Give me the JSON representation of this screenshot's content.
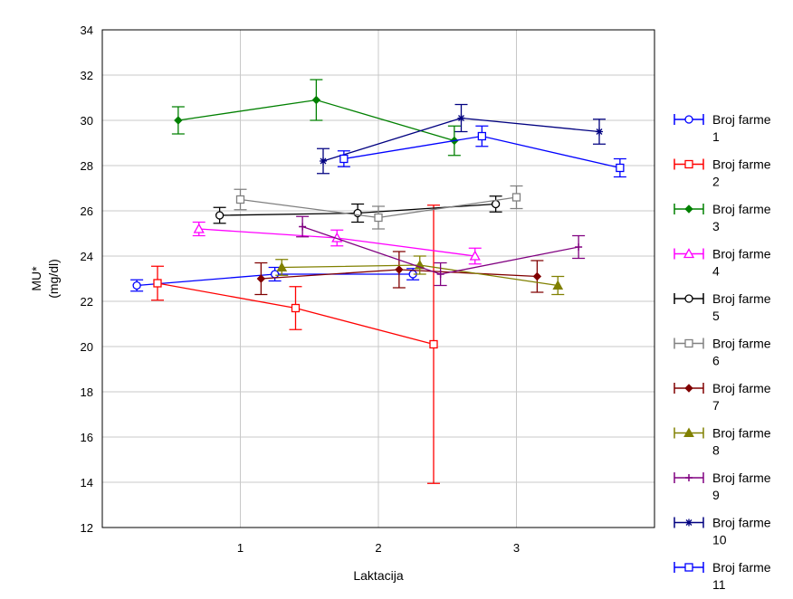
{
  "chart_data": {
    "type": "line",
    "xlabel": "Laktacija",
    "ylabel": [
      "MU*",
      "(mg/dl)"
    ],
    "xlim": [
      0,
      4
    ],
    "ylim": [
      12,
      34
    ],
    "x_ticks": [
      1,
      2,
      3
    ],
    "y_ticks": [
      12,
      14,
      16,
      18,
      20,
      22,
      24,
      26,
      28,
      30,
      32,
      34
    ],
    "grid": true,
    "legend_position": "right",
    "series": [
      {
        "name": [
          "Broj farme",
          "1"
        ],
        "color": "#0000ff",
        "marker": "circle",
        "x": [
          0.25,
          1.25,
          2.25
        ],
        "y": [
          22.7,
          23.2,
          23.2
        ],
        "err": [
          0.25,
          0.3,
          0.25
        ]
      },
      {
        "name": [
          "Broj farme",
          "2"
        ],
        "color": "#ff0000",
        "marker": "square",
        "x": [
          0.4,
          1.4,
          2.4
        ],
        "y": [
          22.8,
          21.7,
          20.1
        ],
        "err": [
          0.75,
          0.95,
          6.15
        ]
      },
      {
        "name": [
          "Broj farme",
          "3"
        ],
        "color": "#008000",
        "marker": "diamond",
        "x": [
          0.55,
          1.55,
          2.55
        ],
        "y": [
          30.0,
          30.9,
          29.1
        ],
        "err": [
          0.6,
          0.9,
          0.65
        ]
      },
      {
        "name": [
          "Broj farme",
          "4"
        ],
        "color": "#ff00ff",
        "marker": "triangle-open",
        "x": [
          0.7,
          1.7,
          2.7
        ],
        "y": [
          25.2,
          24.8,
          24.0
        ],
        "err": [
          0.3,
          0.35,
          0.35
        ]
      },
      {
        "name": [
          "Broj farme",
          "5"
        ],
        "color": "#000000",
        "marker": "circle",
        "x": [
          0.85,
          1.85,
          2.85
        ],
        "y": [
          25.8,
          25.9,
          26.3
        ],
        "err": [
          0.35,
          0.4,
          0.35
        ]
      },
      {
        "name": [
          "Broj farme",
          "6"
        ],
        "color": "#808080",
        "marker": "square",
        "x": [
          1.0,
          2.0,
          3.0
        ],
        "y": [
          26.5,
          25.7,
          26.6
        ],
        "err": [
          0.45,
          0.5,
          0.5
        ]
      },
      {
        "name": [
          "Broj farme",
          "7"
        ],
        "color": "#800000",
        "marker": "diamond",
        "x": [
          1.15,
          2.15,
          3.15
        ],
        "y": [
          23.0,
          23.4,
          23.1
        ],
        "err": [
          0.7,
          0.8,
          0.7
        ]
      },
      {
        "name": [
          "Broj farme",
          "8"
        ],
        "color": "#808000",
        "marker": "triangle",
        "x": [
          1.3,
          2.3,
          3.3
        ],
        "y": [
          23.5,
          23.6,
          22.7
        ],
        "err": [
          0.35,
          0.4,
          0.4
        ]
      },
      {
        "name": [
          "Broj farme",
          "9"
        ],
        "color": "#800080",
        "marker": "plus",
        "x": [
          1.45,
          2.45,
          3.45
        ],
        "y": [
          25.3,
          23.2,
          24.4
        ],
        "err": [
          0.45,
          0.5,
          0.5
        ]
      },
      {
        "name": [
          "Broj farme",
          "10"
        ],
        "color": "#000080",
        "marker": "star",
        "x": [
          1.6,
          2.6,
          3.6
        ],
        "y": [
          28.2,
          30.1,
          29.5
        ],
        "err": [
          0.55,
          0.6,
          0.55
        ]
      },
      {
        "name": [
          "Broj farme",
          "11"
        ],
        "color": "#0000ff",
        "marker": "square",
        "x": [
          1.75,
          2.75,
          3.75
        ],
        "y": [
          28.3,
          29.3,
          27.9
        ],
        "err": [
          0.35,
          0.45,
          0.4
        ]
      }
    ]
  }
}
